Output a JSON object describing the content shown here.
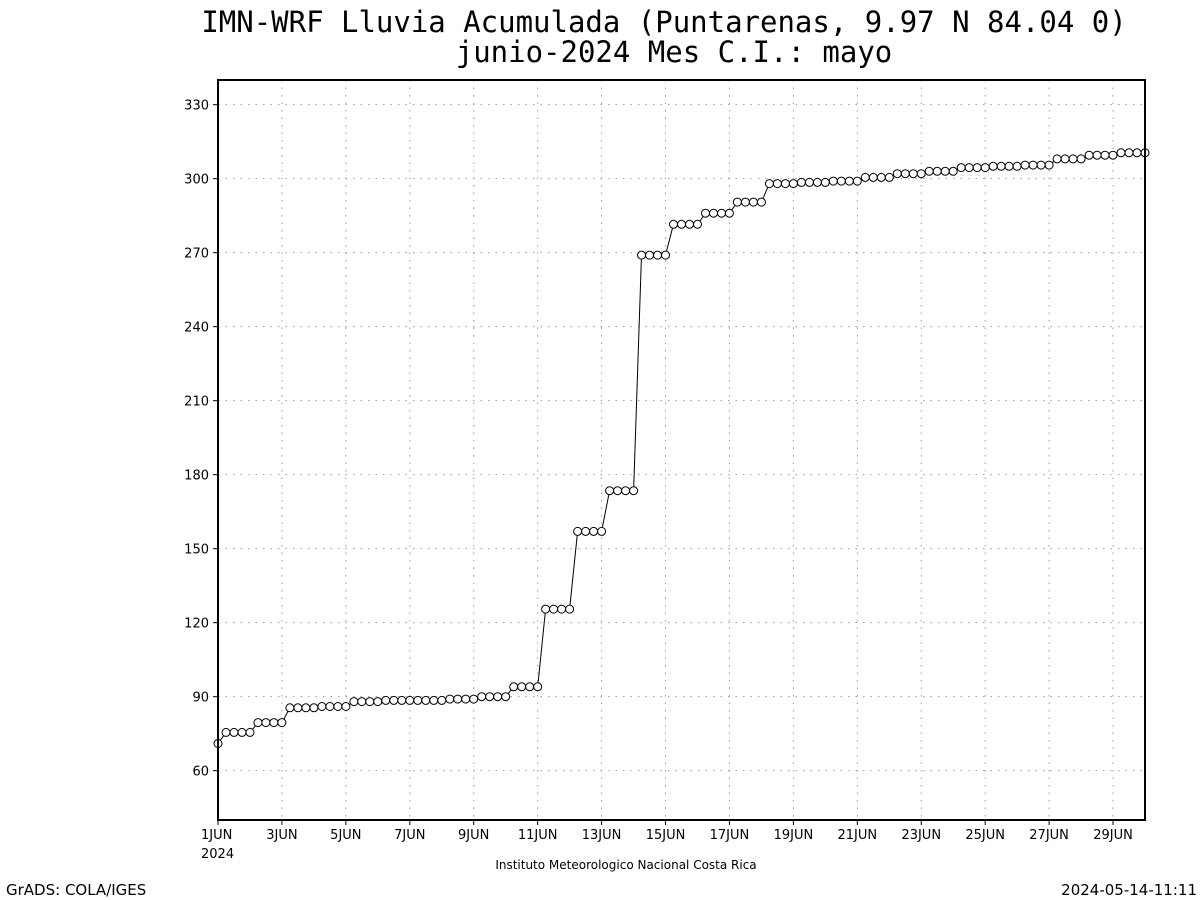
{
  "chart_data": {
    "type": "line",
    "title": "IMN-WRF  Lluvia Acumulada (Puntarenas, 9.97  N 84.04  0)",
    "subtitle": "junio-2024 Mes C.I.: mayo",
    "xlabel": "",
    "ylabel": "",
    "xlim": [
      0,
      29
    ],
    "ylim": [
      40,
      340
    ],
    "y_ticks": [
      60,
      90,
      120,
      150,
      180,
      210,
      240,
      270,
      300,
      330
    ],
    "x_ticks": [
      {
        "day": 1,
        "label": "1JUN",
        "sublabel": "2024"
      },
      {
        "day": 3,
        "label": "3JUN"
      },
      {
        "day": 5,
        "label": "5JUN"
      },
      {
        "day": 7,
        "label": "7JUN"
      },
      {
        "day": 9,
        "label": "9JUN"
      },
      {
        "day": 11,
        "label": "11JUN"
      },
      {
        "day": 13,
        "label": "13JUN"
      },
      {
        "day": 15,
        "label": "15JUN"
      },
      {
        "day": 17,
        "label": "17JUN"
      },
      {
        "day": 19,
        "label": "19JUN"
      },
      {
        "day": 21,
        "label": "21JUN"
      },
      {
        "day": 23,
        "label": "23JUN"
      },
      {
        "day": 25,
        "label": "25JUN"
      },
      {
        "day": 27,
        "label": "27JUN"
      },
      {
        "day": 29,
        "label": "29JUN"
      }
    ],
    "grid": true,
    "marker": "open-circle",
    "line_color": "#000000",
    "series": [
      {
        "name": "",
        "x_unit": "days after 1 JUN 2024",
        "x": [
          0,
          0.25,
          0.5,
          0.75,
          1,
          1.25,
          1.5,
          1.75,
          2,
          2.25,
          2.5,
          2.75,
          3,
          3.25,
          3.5,
          3.75,
          4,
          4.25,
          4.5,
          4.75,
          5,
          5.25,
          5.5,
          5.75,
          6,
          6.25,
          6.5,
          6.75,
          7,
          7.25,
          7.5,
          7.75,
          8,
          8.25,
          8.5,
          8.75,
          9,
          9.25,
          9.5,
          9.75,
          10,
          10.25,
          10.5,
          10.75,
          11,
          11.25,
          11.5,
          11.75,
          12,
          12.25,
          12.5,
          12.75,
          13,
          13.25,
          13.5,
          13.75,
          14,
          14.25,
          14.5,
          14.75,
          15,
          15.25,
          15.5,
          15.75,
          16,
          16.25,
          16.5,
          16.75,
          17,
          17.25,
          17.5,
          17.75,
          18,
          18.25,
          18.5,
          18.75,
          19,
          19.25,
          19.5,
          19.75,
          20,
          20.25,
          20.5,
          20.75,
          21,
          21.25,
          21.5,
          21.75,
          22,
          22.25,
          22.5,
          22.75,
          23,
          23.25,
          23.5,
          23.75,
          24,
          24.25,
          24.5,
          24.75,
          25,
          25.25,
          25.5,
          25.75,
          26,
          26.25,
          26.5,
          26.75,
          27,
          27.25,
          27.5,
          27.75,
          28,
          28.25,
          28.5,
          28.75,
          29
        ],
        "values": [
          71,
          75.5,
          75.5,
          75.5,
          75.5,
          79.5,
          79.5,
          79.5,
          79.5,
          85.5,
          85.5,
          85.5,
          85.5,
          86,
          86,
          86,
          86,
          88,
          88,
          88,
          88,
          88.5,
          88.5,
          88.5,
          88.5,
          88.5,
          88.5,
          88.5,
          88.5,
          89,
          89,
          89,
          89,
          90,
          90,
          90,
          90,
          94,
          94,
          94,
          94,
          125.5,
          125.5,
          125.5,
          125.5,
          157,
          157,
          157,
          157,
          173.5,
          173.5,
          173.5,
          173.5,
          269,
          269,
          269,
          269,
          281.5,
          281.5,
          281.5,
          281.5,
          286,
          286,
          286,
          286,
          290.5,
          290.5,
          290.5,
          290.5,
          298,
          298,
          298,
          298,
          298.5,
          298.5,
          298.5,
          298.5,
          299,
          299,
          299,
          299,
          300.5,
          300.5,
          300.5,
          300.5,
          302,
          302,
          302,
          302,
          303,
          303,
          303,
          303,
          304.5,
          304.5,
          304.5,
          304.5,
          305,
          305,
          305,
          305,
          305.5,
          305.5,
          305.5,
          305.5,
          308,
          308,
          308,
          308,
          309.5,
          309.5,
          309.5,
          309.5,
          310.5,
          310.5,
          310.5,
          310.5
        ]
      }
    ]
  },
  "footer": {
    "institution": "Instituto Meteorologico Nacional Costa Rica",
    "software_credit": "GrADS: COLA/IGES",
    "timestamp": "2024-05-14-11:11"
  }
}
